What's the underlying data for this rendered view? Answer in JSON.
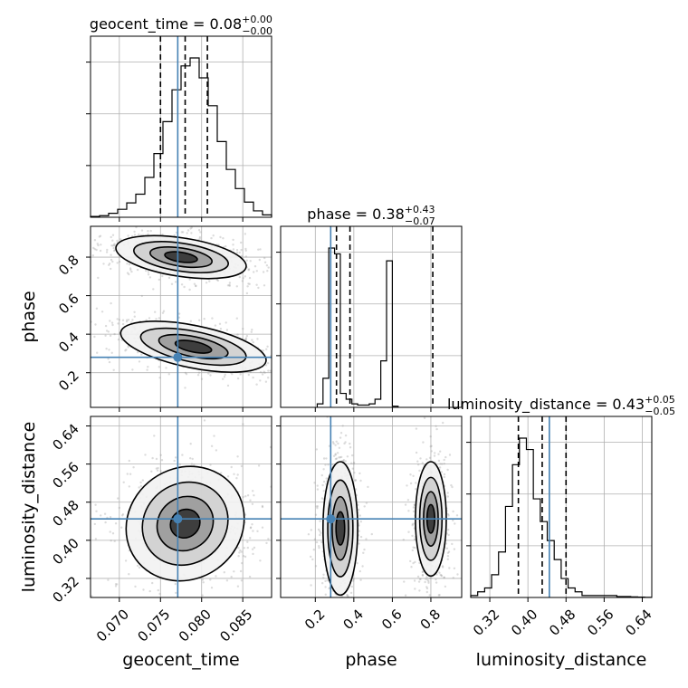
{
  "chart_data": {
    "type": "corner",
    "parameters": [
      {
        "key": "geocent_time",
        "label": "geocent_time",
        "title_prefix": "geocent_time = 0.08",
        "title_plus": "+0.00",
        "title_minus": "−0.00",
        "range": [
          0.0665,
          0.0885
        ],
        "ticks": [
          0.07,
          0.075,
          0.08,
          0.085
        ],
        "tick_labels": [
          "0.070",
          "0.075",
          "0.080",
          "0.085"
        ],
        "truth": 0.0771,
        "quantiles": [
          0.075,
          0.078,
          0.0807
        ],
        "hist_edges_start": 0.0665,
        "hist_bin_width": 0.0011,
        "hist_counts": [
          1,
          2,
          5,
          10,
          18,
          29,
          50,
          80,
          120,
          160,
          190,
          200,
          175,
          140,
          95,
          60,
          36,
          19,
          8,
          3
        ]
      },
      {
        "key": "phase",
        "label": "phase",
        "title_prefix": "phase = 0.38",
        "title_plus": "+0.43",
        "title_minus": "−0.07",
        "range": [
          0.02,
          0.96
        ],
        "ticks": [
          0.2,
          0.4,
          0.6,
          0.8
        ],
        "tick_labels": [
          "0.2",
          "0.4",
          "0.6",
          "0.8"
        ],
        "truth": 0.28,
        "quantiles": [
          0.31,
          0.38,
          0.81
        ],
        "hist_edges_start": 0.21,
        "hist_bin_width": 0.03,
        "hist_counts": [
          3,
          25,
          137,
          132,
          12,
          7,
          3,
          2,
          2,
          3,
          7,
          40,
          126,
          1
        ]
      },
      {
        "key": "luminosity_distance",
        "label": "luminosity_distance",
        "title_prefix": "luminosity_distance = 0.43",
        "title_plus": "+0.05",
        "title_minus": "−0.05",
        "range": [
          0.28,
          0.66
        ],
        "ticks": [
          0.32,
          0.4,
          0.48,
          0.56,
          0.64
        ],
        "tick_labels": [
          "0.32",
          "0.40",
          "0.48",
          "0.56",
          "0.64"
        ],
        "truth": 0.445,
        "quantiles": [
          0.38,
          0.43,
          0.48
        ],
        "hist_edges_start": 0.28,
        "hist_bin_width": 0.0146,
        "hist_counts": [
          1,
          3,
          5,
          12,
          24,
          48,
          70,
          84,
          78,
          52,
          40,
          30,
          20,
          10,
          5,
          3,
          1,
          1,
          1,
          1,
          1,
          0.5,
          0.5,
          0.3,
          0.2,
          0.1
        ]
      }
    ],
    "pairs": [
      {
        "x": "geocent_time",
        "y": "phase",
        "modes": [
          {
            "cx": 0.0775,
            "cy": 0.8,
            "rx": 0.004,
            "ry": 0.05,
            "tilt": 0.15
          },
          {
            "cx": 0.079,
            "cy": 0.335,
            "rx": 0.0045,
            "ry": 0.055,
            "tilt": 0.2
          }
        ]
      },
      {
        "x": "geocent_time",
        "y": "luminosity_distance",
        "modes": [
          {
            "cx": 0.078,
            "cy": 0.435,
            "rx": 0.0037,
            "ry": 0.058,
            "tilt": -0.62
          }
        ]
      },
      {
        "x": "phase",
        "y": "luminosity_distance",
        "modes": [
          {
            "cx": 0.33,
            "cy": 0.425,
            "rx": 0.045,
            "ry": 0.07,
            "tilt": 0.0
          },
          {
            "cx": 0.8,
            "cy": 0.445,
            "rx": 0.04,
            "ry": 0.06,
            "tilt": 0.0
          }
        ]
      }
    ],
    "grid": true
  }
}
